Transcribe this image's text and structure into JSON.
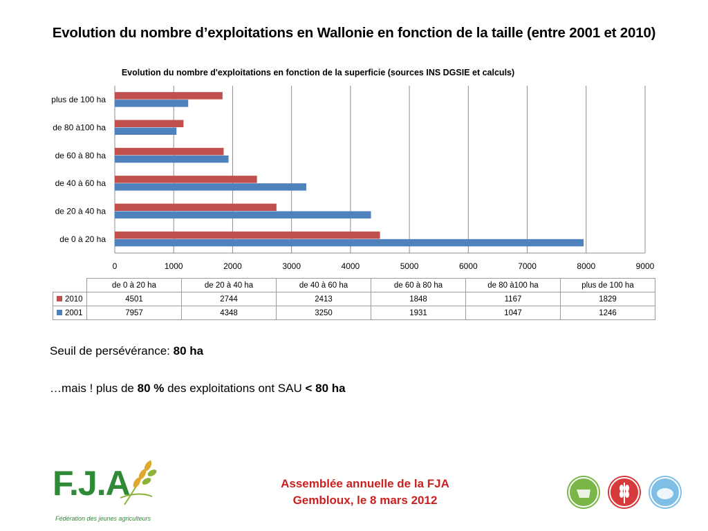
{
  "slide": {
    "title": "Evolution du nombre d’exploitations en Wallonie en fonction de la taille (entre 2001 et 2010)"
  },
  "chart_data": {
    "type": "bar",
    "orientation": "horizontal",
    "title": "Evolution du nombre d'exploitations en fonction de la superficie (sources INS DGSIE et calculs)",
    "categories": [
      "de 0 à 20 ha",
      "de 20 à 40 ha",
      "de 40 à 60 ha",
      "de 60 à 80 ha",
      "de 80 à100 ha",
      "plus de 100 ha"
    ],
    "series": [
      {
        "name": "2010",
        "color": "#c0504d",
        "values": [
          4501,
          2744,
          2413,
          1848,
          1167,
          1829
        ]
      },
      {
        "name": "2001",
        "color": "#4f81bd",
        "values": [
          7957,
          4348,
          3250,
          1931,
          1047,
          1246
        ]
      }
    ],
    "xlim": [
      0,
      9000
    ],
    "xticks": [
      "0",
      "1000",
      "2000",
      "3000",
      "4000",
      "5000",
      "6000",
      "7000",
      "8000",
      "9000"
    ],
    "grid": true,
    "legend": "data table below chart"
  },
  "notes": {
    "line1_text": "Seuil de persévérance: ",
    "line1_bold": "80 ha",
    "line2_a": "…mais ! plus de ",
    "line2_b": "80 %",
    "line2_c": " des exploitations ont SAU ",
    "line2_d": "< 80 ha"
  },
  "footer": {
    "line1": "Assemblée annuelle de la FJA",
    "line2": "Gembloux, le 8 mars 2012"
  },
  "logo": {
    "name": "F.J.A",
    "subtitle": "Fédération des jeunes agriculteurs",
    "color": "#2e8a36"
  },
  "badges": [
    {
      "icon": "cow-icon",
      "color": "#7ab648"
    },
    {
      "icon": "wheat-icon",
      "color": "#d63a3a"
    },
    {
      "icon": "pig-icon",
      "color": "#7fbfe6"
    }
  ]
}
